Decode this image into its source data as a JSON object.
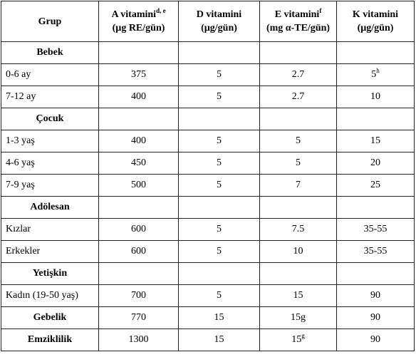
{
  "table": {
    "header": [
      {
        "text": "Grup"
      },
      {
        "text": "A vitamini",
        "sup": "d, e",
        "unit": "(µg RE/gün)"
      },
      {
        "text": "D vitamini",
        "unit": "(µg/gün)"
      },
      {
        "text": "E vitamini",
        "sup": "f",
        "unit": "(mg α-TE/gün)"
      },
      {
        "text": "K vitamini",
        "unit": "(µg/gün)"
      }
    ],
    "rows": [
      {
        "label": "Bebek",
        "bold": true
      },
      {
        "label": "0-6 ay",
        "values": [
          "375",
          "5",
          "2.7",
          {
            "text": "5",
            "sup": "h"
          }
        ]
      },
      {
        "label": "7-12 ay",
        "values": [
          "400",
          "5",
          "2.7",
          "10"
        ]
      },
      {
        "label": "Çocuk",
        "bold": true
      },
      {
        "label": "1-3 yaş",
        "values": [
          "400",
          "5",
          "5",
          "15"
        ]
      },
      {
        "label": "4-6 yaş",
        "values": [
          "450",
          "5",
          "5",
          "20"
        ]
      },
      {
        "label": "7-9 yaş",
        "values": [
          "500",
          "5",
          "7",
          "25"
        ]
      },
      {
        "label": "Adölesan",
        "bold": true
      },
      {
        "label": "Kızlar",
        "values": [
          "600",
          "5",
          "7.5",
          "35-55"
        ]
      },
      {
        "label": "Erkekler",
        "values": [
          "600",
          "5",
          "10",
          "35-55"
        ]
      },
      {
        "label": "Yetişkin",
        "bold": true
      },
      {
        "label": "Kadın (19-50 yaş)",
        "values": [
          "700",
          "5",
          "15",
          "90"
        ]
      },
      {
        "label": "Gebelik",
        "bold": true,
        "values": [
          "770",
          "15",
          "15g",
          "90"
        ]
      },
      {
        "label": "Emziklilik",
        "bold": true,
        "values": [
          "1300",
          "15",
          {
            "text": "15",
            "sup": "g"
          },
          "90"
        ]
      }
    ]
  }
}
